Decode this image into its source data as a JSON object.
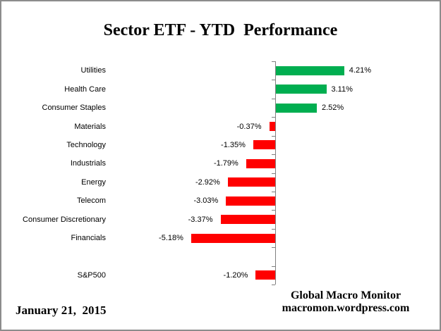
{
  "title": "Sector ETF - YTD  Performance",
  "footer": {
    "date": "January 21,  2015",
    "brand_line1": "Global Macro Monitor",
    "brand_line2": "macromon.wordpress.com"
  },
  "colors": {
    "positive_bar": "#00AE50",
    "negative_bar": "#FF0000",
    "axis": "#808080",
    "border": "#8C8C8C",
    "text": "#000000"
  },
  "chart_data": {
    "type": "bar",
    "orientation": "horizontal",
    "title": "Sector ETF - YTD  Performance",
    "value_unit": "%",
    "baseline": 0,
    "grid": false,
    "legend": false,
    "positive_color": "#00AE50",
    "negative_color": "#FF0000",
    "rows": [
      {
        "category": "Utilities",
        "value": 4.21,
        "label": "4.21%"
      },
      {
        "category": "Health Care",
        "value": 3.11,
        "label": "3.11%"
      },
      {
        "category": "Consumer Staples",
        "value": 2.52,
        "label": "2.52%"
      },
      {
        "category": "Materials",
        "value": -0.37,
        "label": "-0.37%"
      },
      {
        "category": "Technology",
        "value": -1.35,
        "label": "-1.35%"
      },
      {
        "category": "Industrials",
        "value": -1.79,
        "label": "-1.79%"
      },
      {
        "category": "Energy",
        "value": -2.92,
        "label": "-2.92%"
      },
      {
        "category": "Telecom",
        "value": -3.03,
        "label": "-3.03%"
      },
      {
        "category": "Consumer Discretionary",
        "value": -3.37,
        "label": "-3.37%"
      },
      {
        "category": "Financials",
        "value": -5.18,
        "label": "-5.18%"
      },
      {
        "category": "",
        "value": null,
        "label": ""
      },
      {
        "category": "S&P500",
        "value": -1.2,
        "label": "-1.20%"
      }
    ]
  }
}
